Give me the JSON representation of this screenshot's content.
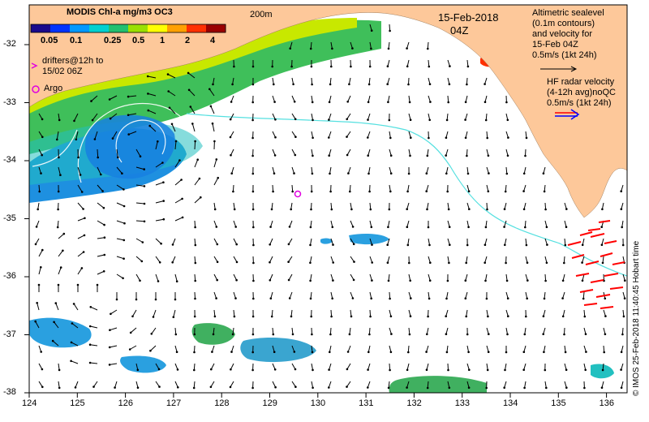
{
  "map": {
    "title": "MODIS Chl-a mg/m3 OC3",
    "colorbar_ticks": [
      "0.05",
      "0.1",
      "0.25",
      "0.5",
      "1",
      "2",
      "4"
    ],
    "colorbar_colors": [
      "#1a0a8c",
      "#0033ff",
      "#0099ff",
      "#00d0d0",
      "#22c070",
      "#9be000",
      "#ffff00",
      "#ffa000",
      "#ff3000",
      "#9a0000"
    ],
    "isobath_label": "200m",
    "date": "15-Feb-2018",
    "time": "04Z",
    "drifters_legend": [
      "drifters@12h to",
      "15/02 06Z"
    ],
    "argo_legend": "Argo",
    "altimetry_legend": [
      "Altimetric sealevel",
      "(0.1m contours)",
      "and velocity for",
      "15-Feb 04Z",
      "0.5m/s (1kt 24h)"
    ],
    "hf_radar_legend": [
      "HF radar velocity",
      "(4-12h avg)noQC",
      "0.5m/s (1kt 24h)"
    ],
    "credit": "© IMOS 25-Feb-2018 11:40:45 Hobart time",
    "lat_labels": [
      "-32",
      "-33",
      "-34",
      "-35",
      "-36",
      "-37",
      "-38"
    ],
    "lon_labels": [
      "124",
      "125",
      "126",
      "127",
      "128",
      "129",
      "130",
      "131",
      "132",
      "133",
      "134",
      "135",
      "136"
    ],
    "colors": {
      "land": "#fdc89a",
      "shelf_line": "#55e0e0",
      "argo": "#e000e0",
      "hf_radar": "#ff0000",
      "drifter": "#e000e0"
    }
  }
}
